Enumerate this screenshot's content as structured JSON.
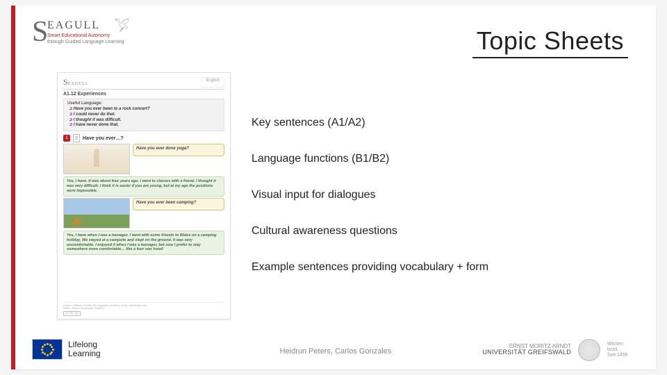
{
  "title": "Topic Sheets",
  "logo": {
    "big_s": "S",
    "word": "EAGULL",
    "sub1": "Smart Educational Autonomy",
    "sub2": "through Guided Language Learning",
    "bird": "𓅯"
  },
  "items": [
    "Key sentences (A1/A2)",
    "Language functions (B1/B2)",
    "Visual input for dialogues",
    "Cultural awareness questions",
    "Example sentences providing vocabulary + form"
  ],
  "authors": "Heidrun Peters, Carlos Gonzales",
  "footer_left": {
    "line1": "Lifelong",
    "line2": "Learning"
  },
  "footer_right": {
    "line1": "ERNST MORITZ ARNDT",
    "line2": "UNIVERSITÄT GREIFSWALD",
    "motto1": "Wissen",
    "motto2": "lockt.",
    "motto3": "Seit 1456"
  },
  "thumb": {
    "logo_s": "S",
    "logo_rest": "EAGULL",
    "lang": "English",
    "topic": "A1.12 Experiences",
    "box_header": "Useful Language:",
    "useful": [
      "Have you ever been to a rock concert?",
      "I could never do that.",
      "I thought it was difficult.",
      "I have never done that."
    ],
    "q_num": "1",
    "q_title": "Have you ever…?",
    "bubble1": "Have you ever done yoga?",
    "answer1": "Yes, I have. It was about four years ago. I went to classes with a friend. I thought it was very difficult. I think it is easier if you are young, but at my age the positions were impossible.",
    "bubble2": "Have you ever been camping?",
    "answer2": "Yes, I have when I was a teenager. I went with some friends to Wales on a camping holiday. We stayed at a campsite and slept on the ground. It was very uncomfortable. I enjoyed it when I was a teenager, but now I prefer to stay somewhere more comfortable… like a four star hotel!",
    "credits": "Author: William Treddle   Photographs courtesy of http://pixabay.com/",
    "credits2": "Editor: Marie-Christophe Graefen",
    "cc": "CC BY-SA"
  }
}
